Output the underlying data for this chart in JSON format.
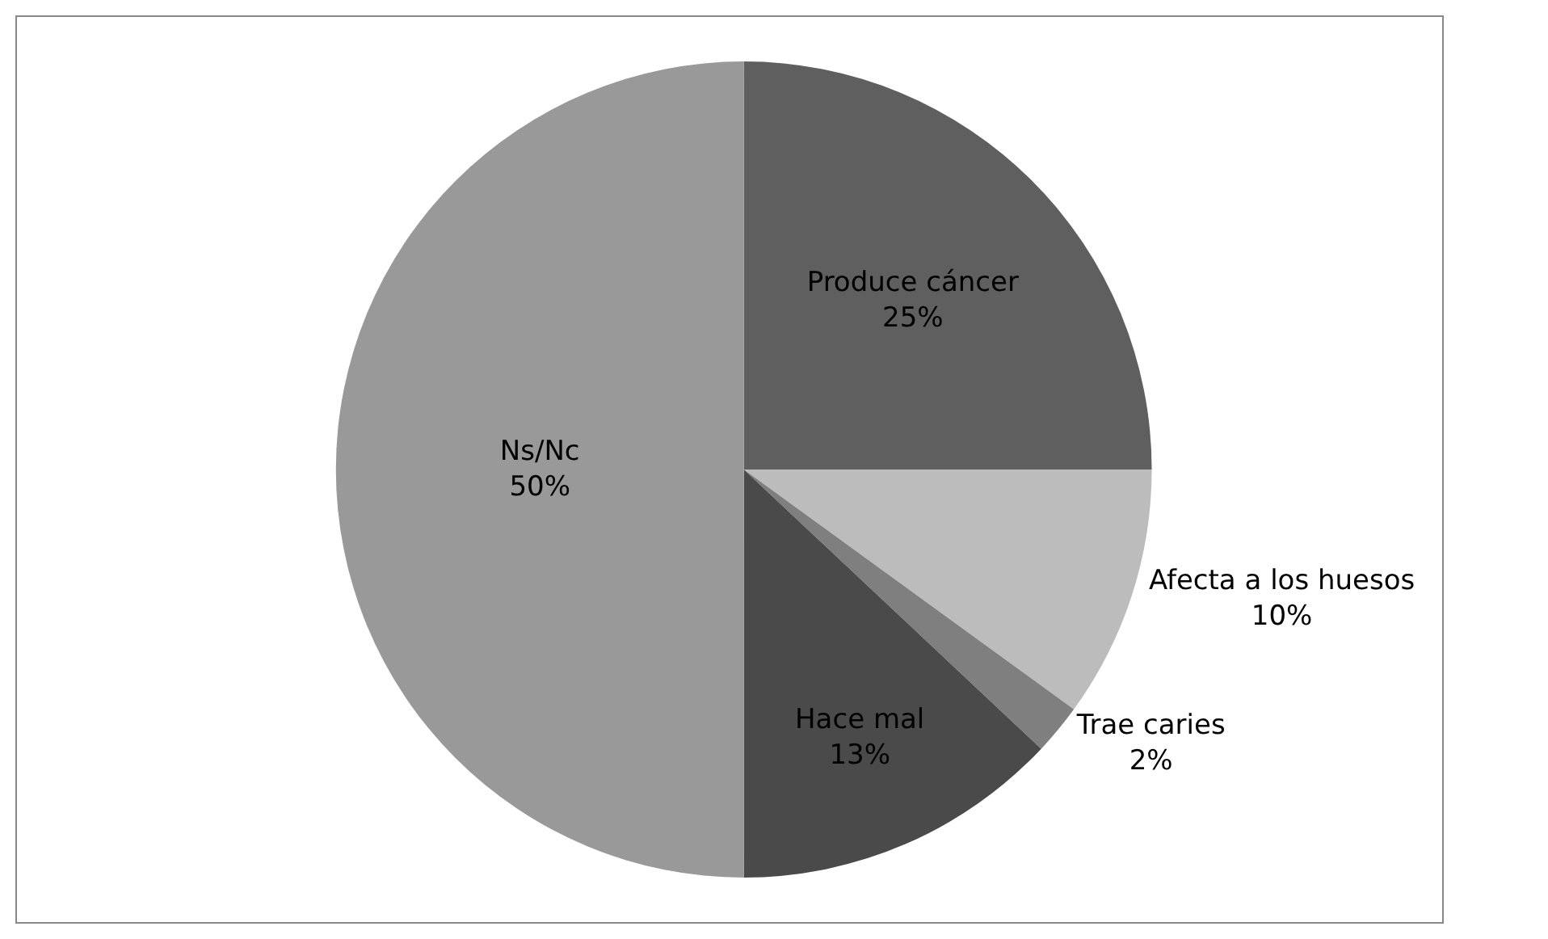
{
  "chart_data": {
    "type": "pie",
    "categories": [
      "Produce cáncer",
      "Afecta a los huesos",
      "Trae caries",
      "Hace mal",
      "Ns/Nc"
    ],
    "values": [
      25,
      10,
      2,
      13,
      50
    ],
    "value_labels": [
      "25%",
      "10%",
      "2%",
      "13%",
      "50%"
    ],
    "colors": [
      "#5f5f5f",
      "#bcbcbc",
      "#7f7f7f",
      "#4a4a4a",
      "#999999"
    ],
    "legend": false
  }
}
